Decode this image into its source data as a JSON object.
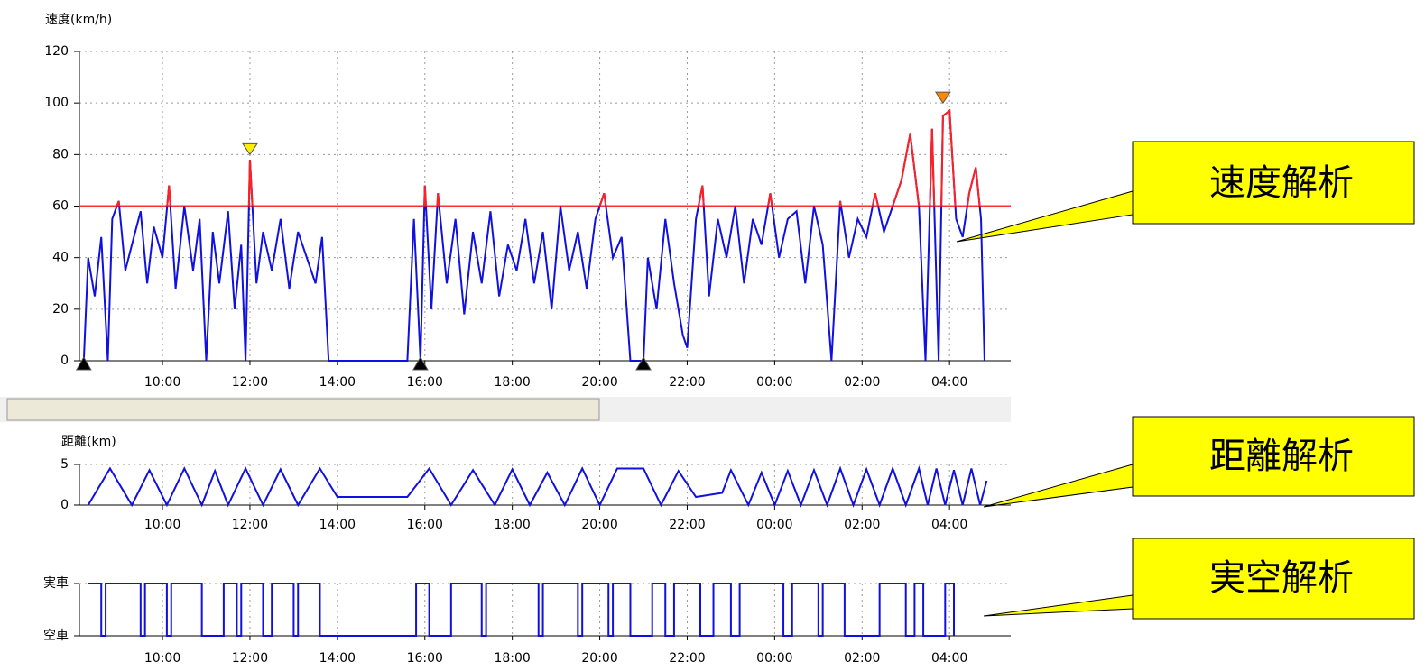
{
  "chart_data": [
    {
      "type": "line",
      "title": "速度(km/h)",
      "xlim": [
        8.1,
        29.4
      ],
      "ylim": [
        0,
        120
      ],
      "yticks": [
        0,
        20,
        40,
        60,
        80,
        100,
        120
      ],
      "xticks": [
        {
          "value": 10,
          "label": "10:00"
        },
        {
          "value": 12,
          "label": "12:00"
        },
        {
          "value": 14,
          "label": "14:00"
        },
        {
          "value": 16,
          "label": "16:00"
        },
        {
          "value": 18,
          "label": "18:00"
        },
        {
          "value": 20,
          "label": "20:00"
        },
        {
          "value": 22,
          "label": "22:00"
        },
        {
          "value": 24,
          "label": "00:00"
        },
        {
          "value": 26,
          "label": "02:00"
        },
        {
          "value": 28,
          "label": "04:00"
        }
      ],
      "grid": true,
      "threshold": 60,
      "threshold_color": "#ff3030",
      "over_color": "#ff2020",
      "series": [
        {
          "color": "#1010e0",
          "x": [
            8.2,
            8.3,
            8.45,
            8.6,
            8.75,
            8.85,
            9.0,
            9.15,
            9.3,
            9.5,
            9.65,
            9.8,
            10.0,
            10.15,
            10.3,
            10.5,
            10.7,
            10.85,
            11.0,
            11.15,
            11.3,
            11.5,
            11.65,
            11.8,
            11.9,
            12.0,
            12.15,
            12.3,
            12.5,
            12.7,
            12.9,
            13.1,
            13.3,
            13.5,
            13.65,
            13.8,
            15.6,
            15.75,
            15.9,
            16.0,
            16.15,
            16.3,
            16.5,
            16.7,
            16.9,
            17.1,
            17.3,
            17.5,
            17.7,
            17.9,
            18.1,
            18.3,
            18.5,
            18.7,
            18.9,
            19.1,
            19.3,
            19.5,
            19.7,
            19.9,
            20.1,
            20.3,
            20.5,
            20.7,
            21.0,
            21.1,
            21.3,
            21.5,
            21.7,
            21.9,
            22.0,
            22.2,
            22.35,
            22.5,
            22.7,
            22.9,
            23.1,
            23.3,
            23.5,
            23.7,
            23.9,
            24.1,
            24.3,
            24.5,
            24.7,
            24.9,
            25.1,
            25.3,
            25.5,
            25.7,
            25.9,
            26.1,
            26.3,
            26.5,
            26.7,
            26.9,
            27.1,
            27.3,
            27.45,
            27.6,
            27.75,
            27.85,
            28.0,
            28.15,
            28.3,
            28.45,
            28.6,
            28.72,
            28.8
          ],
          "values": [
            0,
            40,
            25,
            48,
            0,
            55,
            62,
            35,
            45,
            58,
            30,
            52,
            40,
            68,
            28,
            60,
            35,
            55,
            0,
            50,
            30,
            58,
            20,
            45,
            0,
            78,
            30,
            50,
            35,
            55,
            28,
            50,
            40,
            30,
            48,
            0,
            0,
            55,
            0,
            68,
            20,
            65,
            30,
            55,
            18,
            50,
            30,
            58,
            25,
            45,
            35,
            55,
            30,
            50,
            20,
            60,
            35,
            50,
            28,
            55,
            65,
            40,
            48,
            0,
            0,
            40,
            20,
            55,
            30,
            10,
            5,
            55,
            68,
            25,
            55,
            40,
            60,
            30,
            55,
            45,
            65,
            40,
            55,
            58,
            30,
            60,
            45,
            0,
            62,
            40,
            55,
            48,
            65,
            50,
            60,
            70,
            88,
            60,
            0,
            90,
            0,
            95,
            97,
            55,
            48,
            65,
            75,
            55,
            0
          ]
        }
      ],
      "markers": [
        {
          "x": 12.0,
          "y": 80,
          "color": "#ffee00",
          "shape": "down"
        },
        {
          "x": 27.85,
          "y": 100,
          "color": "#ff8800",
          "shape": "down"
        },
        {
          "x": 8.2,
          "y": 0,
          "color": "#000000",
          "shape": "up"
        },
        {
          "x": 15.9,
          "y": 0,
          "color": "#000000",
          "shape": "up"
        },
        {
          "x": 21.0,
          "y": 0,
          "color": "#000000",
          "shape": "up"
        }
      ]
    },
    {
      "type": "line",
      "title": "距離(km)",
      "xlim": [
        8.1,
        29.4
      ],
      "ylim": [
        0,
        5
      ],
      "yticks": [
        0,
        5
      ],
      "xticks": [
        {
          "value": 10,
          "label": "10:00"
        },
        {
          "value": 12,
          "label": "12:00"
        },
        {
          "value": 14,
          "label": "14:00"
        },
        {
          "value": 16,
          "label": "16:00"
        },
        {
          "value": 18,
          "label": "18:00"
        },
        {
          "value": 20,
          "label": "20:00"
        },
        {
          "value": 22,
          "label": "22:00"
        },
        {
          "value": 24,
          "label": "00:00"
        },
        {
          "value": 26,
          "label": "02:00"
        },
        {
          "value": 28,
          "label": "04:00"
        }
      ],
      "grid": true,
      "series": [
        {
          "color": "#1010e0",
          "x": [
            8.3,
            8.8,
            9.3,
            9.7,
            10.1,
            10.5,
            10.9,
            11.2,
            11.5,
            11.9,
            12.3,
            12.7,
            13.1,
            13.6,
            14.0,
            15.6,
            16.1,
            16.6,
            17.1,
            17.6,
            18.0,
            18.4,
            18.8,
            19.2,
            19.6,
            20.0,
            20.4,
            21.0,
            21.4,
            21.8,
            22.2,
            22.8,
            23.0,
            23.4,
            23.7,
            24.0,
            24.3,
            24.6,
            24.9,
            25.2,
            25.5,
            25.8,
            26.1,
            26.4,
            26.7,
            27.0,
            27.3,
            27.5,
            27.7,
            27.9,
            28.1,
            28.3,
            28.5,
            28.7,
            28.85
          ],
          "values": [
            0,
            4.5,
            0,
            4.3,
            0,
            4.5,
            0,
            4.2,
            0,
            4.5,
            0,
            4.4,
            0,
            4.5,
            1,
            1,
            4.5,
            0,
            4.3,
            0,
            4.4,
            0,
            4,
            0,
            4.5,
            0,
            4.5,
            4.5,
            0,
            4.2,
            1,
            1.5,
            4.3,
            0,
            4,
            0,
            4.2,
            0,
            4.3,
            0,
            4.5,
            0,
            4.4,
            0,
            4.5,
            0,
            4.5,
            0,
            4.5,
            0,
            4.3,
            0,
            4.5,
            0,
            3
          ]
        }
      ]
    },
    {
      "type": "step",
      "xlim": [
        8.1,
        29.4
      ],
      "ylim": [
        0,
        1
      ],
      "yticks": [
        {
          "value": 1,
          "label": "実車"
        },
        {
          "value": 0,
          "label": "空車"
        }
      ],
      "xticks": [
        {
          "value": 10,
          "label": "10:00"
        },
        {
          "value": 12,
          "label": "12:00"
        },
        {
          "value": 14,
          "label": "14:00"
        },
        {
          "value": 16,
          "label": "16:00"
        },
        {
          "value": 18,
          "label": "18:00"
        },
        {
          "value": 20,
          "label": "20:00"
        },
        {
          "value": 22,
          "label": "22:00"
        },
        {
          "value": 24,
          "label": "00:00"
        },
        {
          "value": 26,
          "label": "02:00"
        },
        {
          "value": 28,
          "label": "04:00"
        }
      ],
      "grid": true,
      "series": [
        {
          "color": "#1010e0",
          "x": [
            8.3,
            8.6,
            8.7,
            9.5,
            9.6,
            10.1,
            10.2,
            10.9,
            11.4,
            11.7,
            11.8,
            12.3,
            12.5,
            13.0,
            13.1,
            13.6,
            15.8,
            16.1,
            16.6,
            17.3,
            17.4,
            18.6,
            18.7,
            19.5,
            19.6,
            20.2,
            20.3,
            20.7,
            21.2,
            21.5,
            21.7,
            22.3,
            22.6,
            23.0,
            23.2,
            24.2,
            24.4,
            25.0,
            25.1,
            25.6,
            26.4,
            27.0,
            27.2,
            27.4,
            27.9,
            28.1
          ],
          "values": [
            1,
            0,
            1,
            0,
            1,
            0,
            1,
            0,
            1,
            0,
            1,
            0,
            1,
            0,
            1,
            0,
            1,
            0,
            1,
            0,
            1,
            0,
            1,
            0,
            1,
            0,
            1,
            0,
            1,
            0,
            1,
            0,
            1,
            0,
            1,
            0,
            1,
            0,
            1,
            0,
            1,
            0,
            1,
            0,
            1,
            0
          ]
        }
      ]
    }
  ],
  "callouts": [
    "速度解析",
    "距離解析",
    "実空解析"
  ]
}
